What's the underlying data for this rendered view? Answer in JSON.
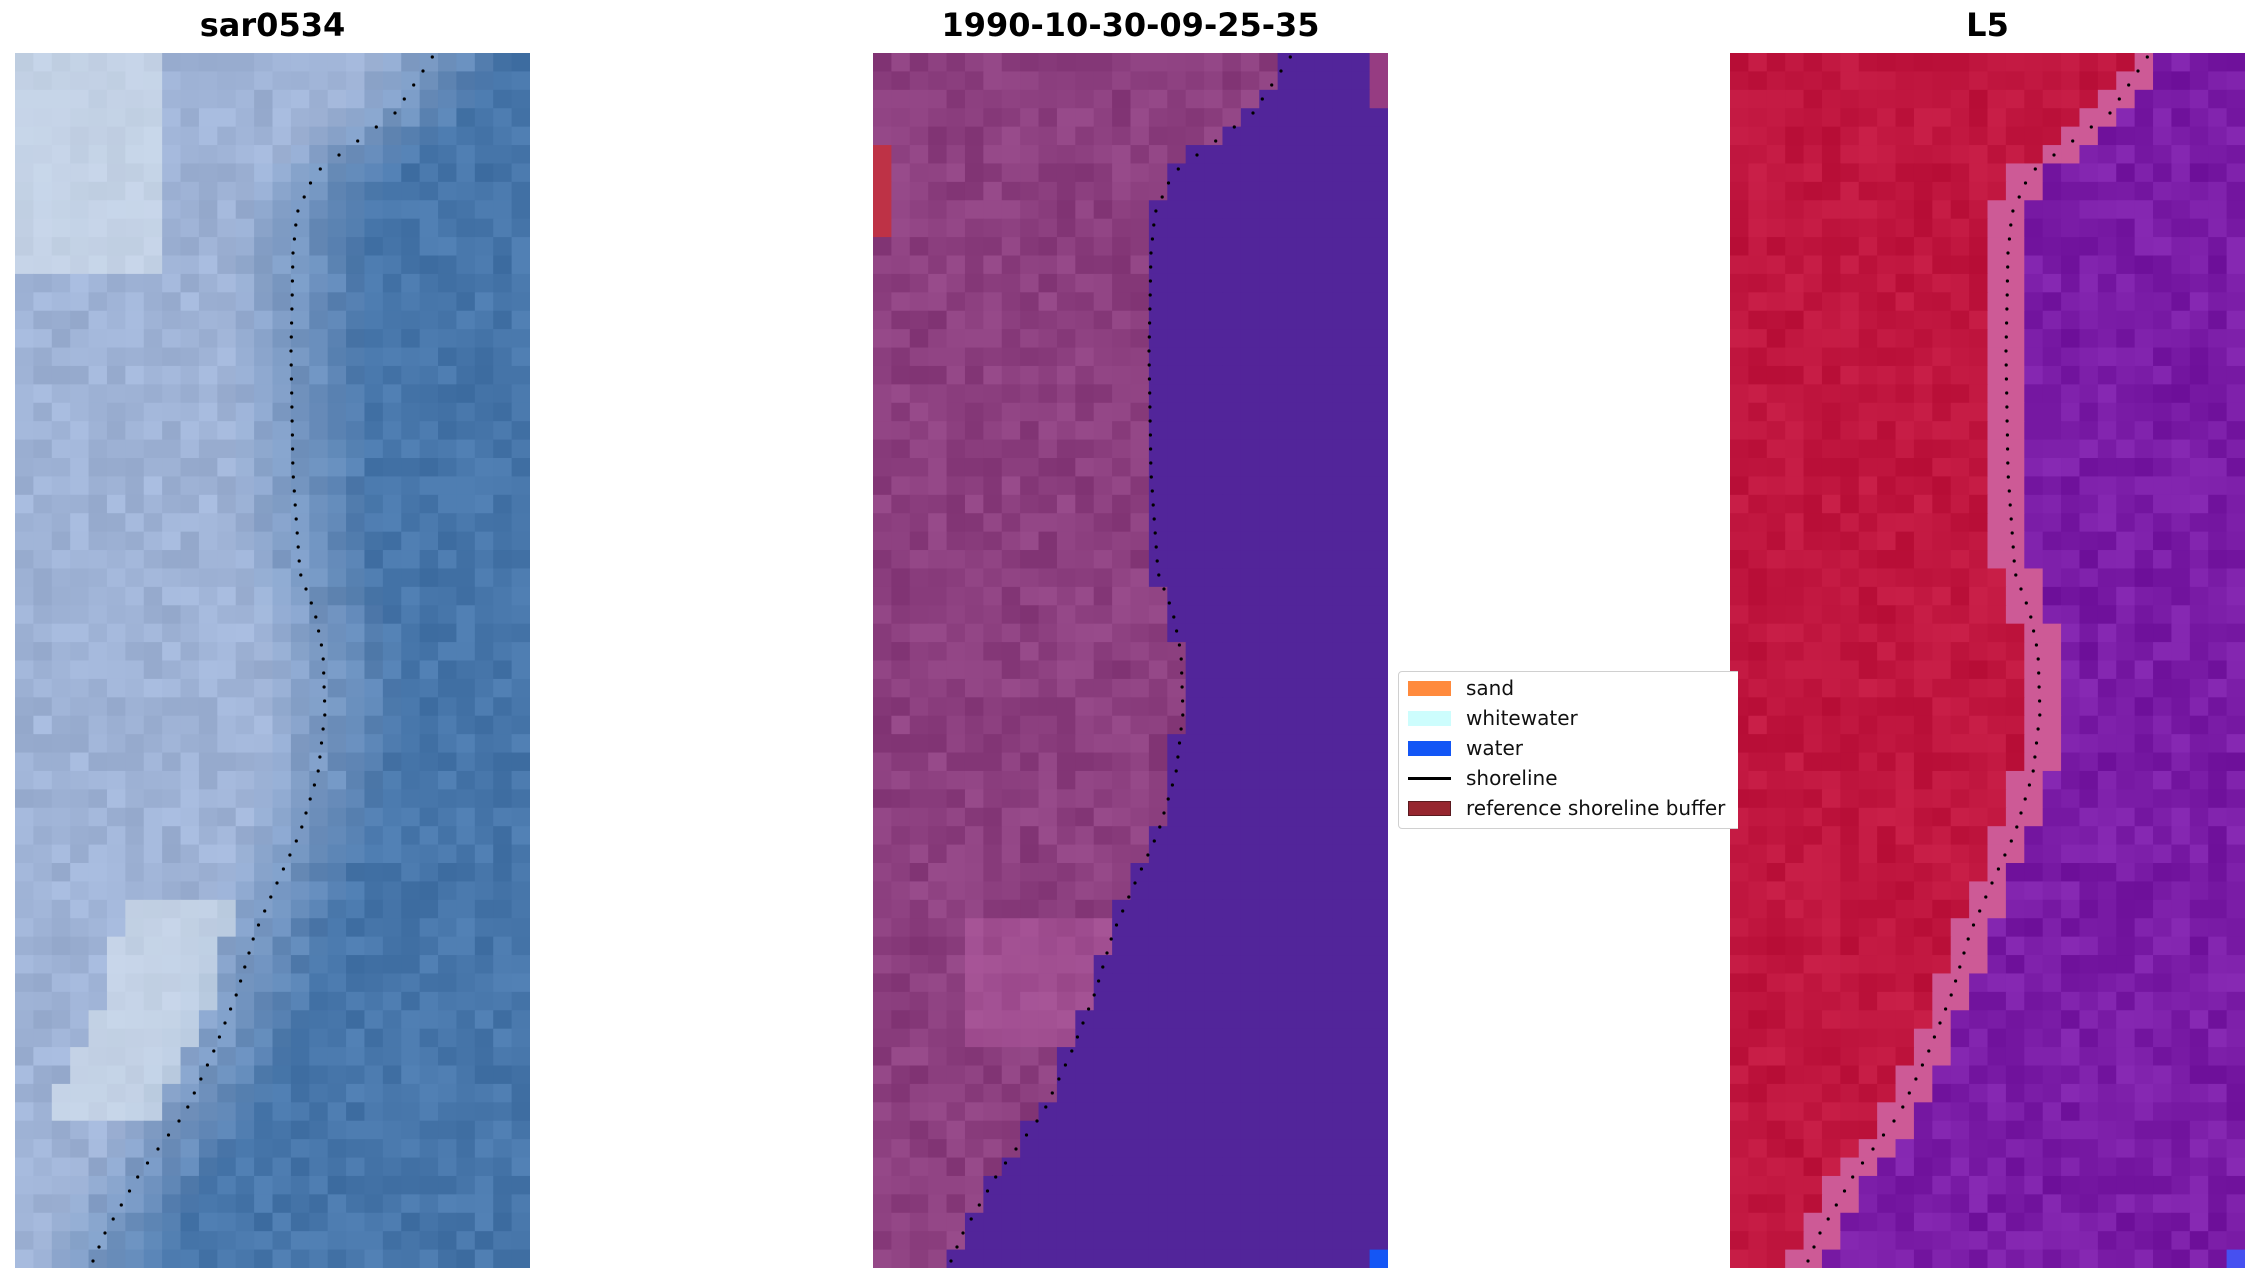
{
  "panels": [
    {
      "title": "sar0534",
      "palette": "rgb"
    },
    {
      "title": "1990-10-30-09-25-35",
      "palette": "classified"
    },
    {
      "title": "L5",
      "palette": "index"
    }
  ],
  "legend": {
    "items": [
      {
        "label": "sand",
        "color": "#ff8a3d",
        "kind": "patch"
      },
      {
        "label": "whitewater",
        "color": "#cdfdfd",
        "kind": "patch"
      },
      {
        "label": "water",
        "color": "#1356f5",
        "kind": "patch"
      },
      {
        "label": "shoreline",
        "color": "#000000",
        "kind": "line"
      },
      {
        "label": "reference shoreline buffer",
        "color": "#96262f",
        "kind": "patch"
      }
    ]
  },
  "colors": {
    "rgb_land": "#9fb3d6",
    "rgb_water": "#4776aa",
    "class_land": "#8c3f7f",
    "class_water": "#52259a",
    "index_land": "#c0163f",
    "index_water": "#7a1ca6"
  }
}
